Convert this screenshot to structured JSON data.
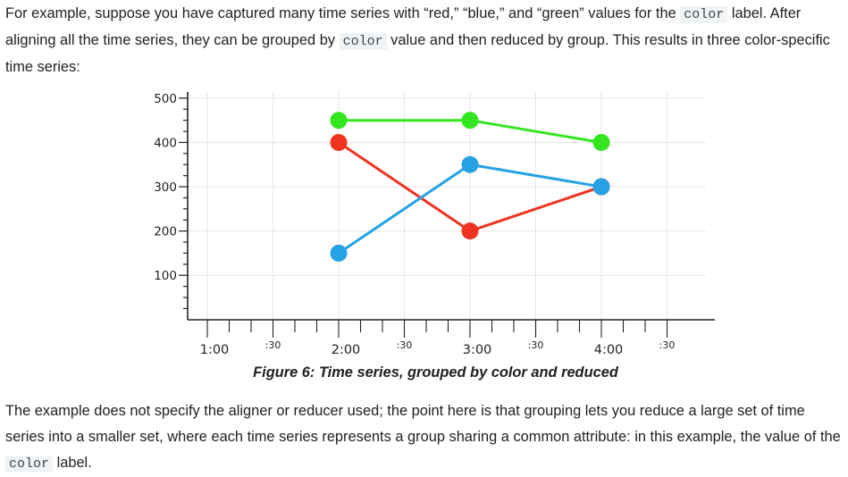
{
  "intro": {
    "t1": "For example, suppose you have captured many time series with “red,” “blue,” and “green” values for the ",
    "code1": "color",
    "t2": " label. After aligning all the time series, they can be grouped by ",
    "code2": "color",
    "t3": " value and then reduced by group. This results in three color-specific time series:"
  },
  "figure": {
    "caption": "Figure 6: Time series, grouped by color and reduced"
  },
  "chart_data": {
    "type": "line",
    "grid": true,
    "ylim": [
      0,
      500
    ],
    "yticks": [
      100,
      200,
      300,
      400,
      500
    ],
    "xlim": [
      "1:00",
      "4:30"
    ],
    "xtick_labels": [
      {
        "label": "1:00",
        "minor": false
      },
      {
        "label": ":30",
        "minor": true
      },
      {
        "label": "2:00",
        "minor": false
      },
      {
        "label": ":30",
        "minor": true
      },
      {
        "label": "3:00",
        "minor": false
      },
      {
        "label": ":30",
        "minor": true
      },
      {
        "label": "4:00",
        "minor": false
      },
      {
        "label": ":30",
        "minor": true
      }
    ],
    "x": [
      "2:00",
      "3:00",
      "4:00"
    ],
    "series": [
      {
        "color": "#33e61f",
        "values": [
          450,
          450,
          400
        ]
      },
      {
        "color": "#ee3320",
        "values": [
          400,
          200,
          300
        ]
      },
      {
        "color": "#25a1e4",
        "values": [
          150,
          350,
          300
        ]
      }
    ]
  },
  "outro": {
    "t1": "The example does not specify the aligner or reducer used; the point here is that grouping lets you reduce a large set of time series into a smaller set, where each time series represents a group sharing a common attribute: in this example, the value of the ",
    "code1": "color",
    "t2": " label."
  }
}
